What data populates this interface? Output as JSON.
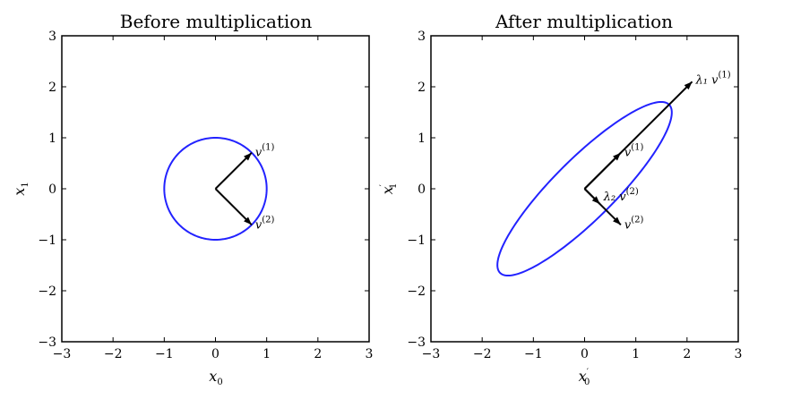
{
  "chart_data": [
    {
      "type": "line",
      "title": "Before multiplication",
      "xlabel": "x0",
      "ylabel": "x1",
      "xlim": [
        -3,
        3
      ],
      "ylim": [
        -3,
        3
      ],
      "xticks": [
        "−3",
        "−2",
        "−1",
        "0",
        "1",
        "2",
        "3"
      ],
      "yticks": [
        "−3",
        "−2",
        "−1",
        "0",
        "1",
        "2",
        "3"
      ],
      "curve": {
        "kind": "ellipse",
        "color": "#2222ff",
        "matrix": [
          [
            1,
            0
          ],
          [
            0,
            1
          ]
        ]
      },
      "vectors": [
        {
          "label": "v(1)",
          "base": "v",
          "sup": "(1)",
          "end": [
            0.707,
            0.707
          ]
        },
        {
          "label": "v(2)",
          "base": "v",
          "sup": "(2)",
          "end": [
            0.707,
            -0.707
          ]
        }
      ],
      "grid": false
    },
    {
      "type": "line",
      "title": "After multiplication",
      "xlabel": "x′0",
      "ylabel": "x′1",
      "xlim": [
        -3,
        3
      ],
      "ylim": [
        -3,
        3
      ],
      "xticks": [
        "−3",
        "−2",
        "−1",
        "0",
        "1",
        "2",
        "3"
      ],
      "yticks": [
        "−3",
        "−2",
        "−1",
        "0",
        "1",
        "2",
        "3"
      ],
      "curve": {
        "kind": "ellipse",
        "color": "#2222ff",
        "matrix": [
          [
            1.65,
            0.42
          ],
          [
            1.65,
            -0.42
          ]
        ]
      },
      "vectors": [
        {
          "label": "λ1 v(1)",
          "base": "λ₁ v",
          "sup": "(1)",
          "end": [
            2.1,
            2.1
          ]
        },
        {
          "label": "v(1)",
          "base": "v",
          "sup": "(1)",
          "end": [
            0.707,
            0.707
          ]
        },
        {
          "label": "λ2 v(2)",
          "base": "λ₂ v",
          "sup": "(2)",
          "end": [
            0.3,
            -0.3
          ]
        },
        {
          "label": "v(2)",
          "base": "v",
          "sup": "(2)",
          "end": [
            0.707,
            -0.707
          ]
        }
      ],
      "grid": false
    }
  ]
}
